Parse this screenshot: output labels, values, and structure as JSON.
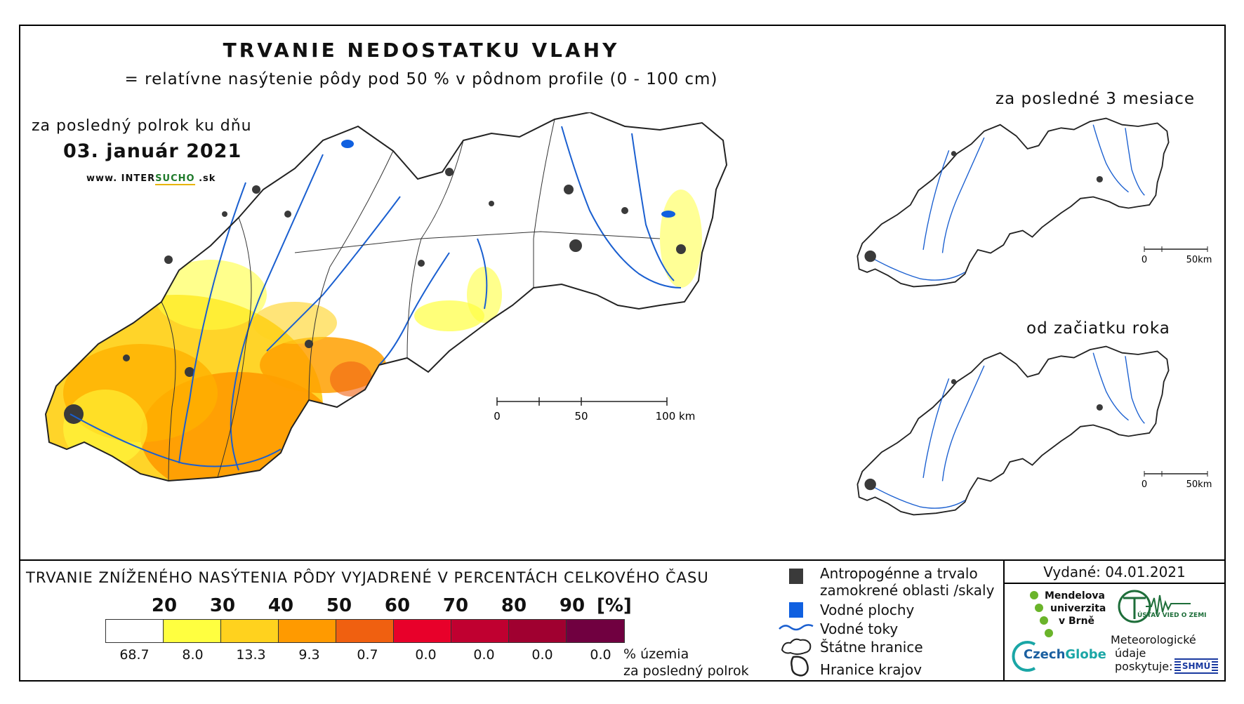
{
  "header": {
    "title": "TRVANIE NEDOSTATKU VLAHY",
    "subtitle": "= relatívne nasýtenie pôdy pod 50 % v pôdnom profile (0 - 100 cm)",
    "period_main": "za posledný polrok ku dňu",
    "date": "03. január 2021",
    "www_prefix": "www.",
    "www_inter": "INTER",
    "www_sucho": "SUCHO",
    "www_suffix": ".sk"
  },
  "insets": {
    "three_months": "za posledné 3 mesiace",
    "year_start": "od začiatku roka",
    "scale_zero": "0",
    "scale_end": "50km"
  },
  "main_scale": {
    "zero": "0",
    "mid": "50",
    "end": "100 km"
  },
  "legend": {
    "title": "TRVANIE ZNÍŽENÉHO NASÝTENIA PÔDY VYJADRENÉ V PERCENTÁCH CELKOVÉHO ČASU",
    "ticks": [
      "20",
      "30",
      "40",
      "50",
      "60",
      "70",
      "80",
      "90"
    ],
    "unit": "[%]",
    "colors": [
      "#ffffff",
      "#ffff40",
      "#ffd21e",
      "#ff9a00",
      "#f06010",
      "#e8002a",
      "#c00030",
      "#a00030",
      "#700040"
    ],
    "percent_of_area": [
      "68.7",
      "8.0",
      "13.3",
      "9.3",
      "0.7",
      "0.0",
      "0.0",
      "0.0",
      "0.0"
    ],
    "pct_label_1": "% územia",
    "pct_label_2": "za posledný polrok"
  },
  "map_legend": {
    "anthropogenic_1": "Antropogénne a trvalo",
    "anthropogenic_2": "zamokrené oblasti /skaly",
    "water_bodies": "Vodné plochy",
    "streams": "Vodné toky",
    "state_border": "Štátne hranice",
    "region_border": "Hranice krajov",
    "color_anthropogenic": "#3a3a3a",
    "color_water": "#1060e0",
    "color_stream": "#1a5fd0"
  },
  "footer": {
    "issued": "Vydané: 04.01.2021",
    "mendel_1": "Mendelova",
    "mendel_2": "univerzita",
    "mendel_3": "v Brně",
    "czech": "Czech",
    "globe": "Globe",
    "ustav": "ÚSTAV VIED O ZEMI",
    "meteo_1": "Meteorologické",
    "meteo_2": "údaje",
    "meteo_3": "poskytuje:",
    "shmu": "SHMÚ"
  }
}
